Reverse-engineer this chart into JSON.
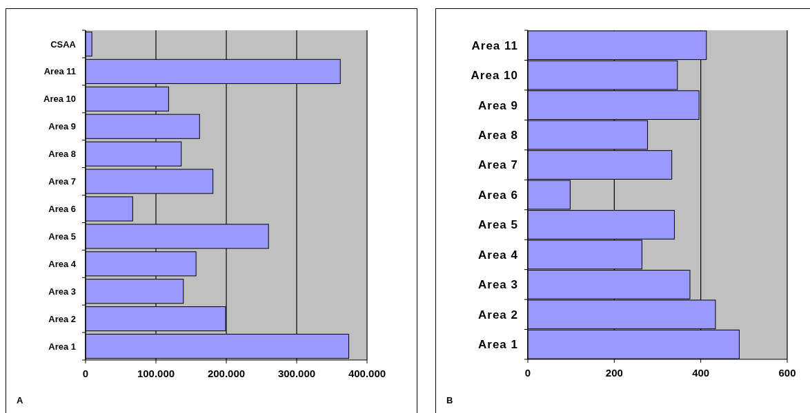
{
  "chart_data": [
    {
      "type": "bar",
      "orientation": "horizontal",
      "categories": [
        "CSAA",
        "Area 11",
        "Area 10",
        "Area 9",
        "Area 8",
        "Area 7",
        "Area 6",
        "Area 5",
        "Area 4",
        "Area 3",
        "Area 2",
        "Area 1"
      ],
      "values": [
        9000,
        362000,
        118000,
        162000,
        136000,
        181000,
        67000,
        260000,
        157000,
        139000,
        199000,
        374000
      ],
      "color": "#9999ff",
      "xlim": [
        0,
        400000
      ],
      "xticks": [
        0,
        {
          "value": 100000,
          "label": "100.000"
        },
        {
          "value": 200000,
          "label": "200.000"
        },
        {
          "value": 300000,
          "label": "300.000"
        },
        {
          "value": 400000,
          "label": "400.000"
        }
      ],
      "grid": "x",
      "annotations": [
        "A"
      ]
    },
    {
      "type": "bar",
      "orientation": "horizontal",
      "categories": [
        "Area 11",
        "Area 10",
        "Area 9",
        "Area 8",
        "Area 7",
        "Area 6",
        "Area 5",
        "Area 4",
        "Area 3",
        "Area 2",
        "Area 1"
      ],
      "values": [
        413,
        346,
        396,
        277,
        333,
        98,
        339,
        264,
        375,
        434,
        489
      ],
      "color": "#9999ff",
      "xlim": [
        0,
        600
      ],
      "xticks": [
        0,
        200,
        400,
        600
      ],
      "grid": "x",
      "annotations": [
        "B"
      ]
    }
  ]
}
